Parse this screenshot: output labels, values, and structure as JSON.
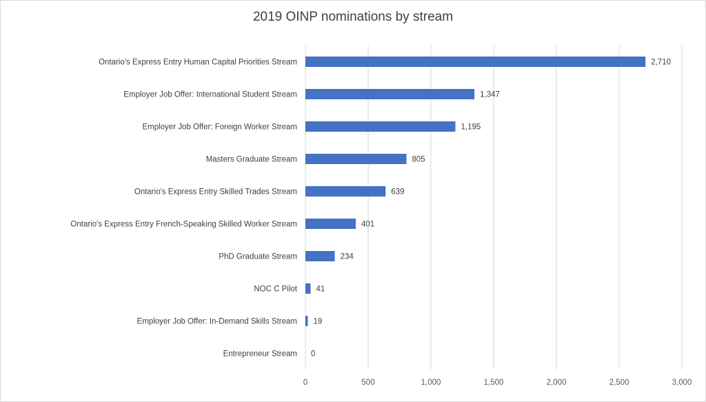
{
  "chart_data": {
    "type": "bar",
    "orientation": "horizontal",
    "title": "2019 OINP nominations by stream",
    "xlabel": "",
    "ylabel": "",
    "categories": [
      "Ontario's Express Entry Human Capital Priorities Stream",
      "Employer Job Offer: International Student Stream",
      "Employer Job Offer: Foreign Worker Stream",
      "Masters Graduate Stream",
      "Ontario's Express Entry Skilled Trades Stream",
      "Ontario's Express Entry French-Speaking Skilled Worker Stream",
      "PhD Graduate Stream",
      "NOC C Pilot",
      "Employer Job Offer: In-Demand Skills Stream",
      "Entrepreneur Stream"
    ],
    "values": [
      2710,
      1347,
      1195,
      805,
      639,
      401,
      234,
      41,
      19,
      0
    ],
    "value_labels": [
      "2,710",
      "1,347",
      "1,195",
      "805",
      "639",
      "401",
      "234",
      "41",
      "19",
      "0"
    ],
    "xlim": [
      0,
      3000
    ],
    "xticks": [
      0,
      500,
      1000,
      1500,
      2000,
      2500,
      3000
    ],
    "xtick_labels": [
      "0",
      "500",
      "1,000",
      "1,500",
      "2,000",
      "2,500",
      "3,000"
    ],
    "grid": "vertical",
    "legend": "none",
    "bar_color": "#4472c4",
    "grid_color": "#d9d9d9"
  }
}
